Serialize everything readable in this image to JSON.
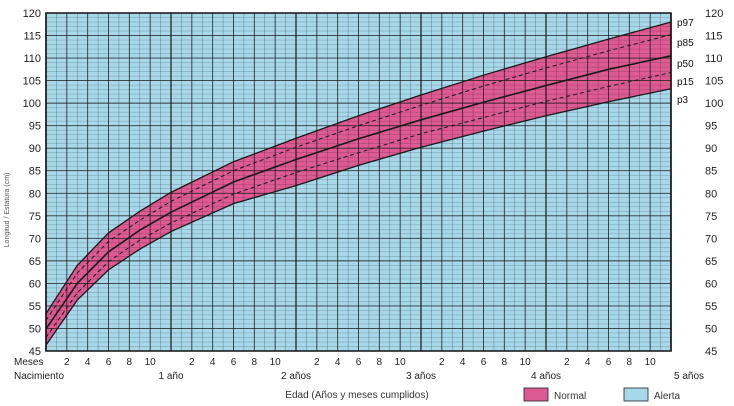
{
  "chart_data": {
    "type": "line",
    "xlabel": "Edad (Años y meses cumplidos)",
    "ylabel": "Longitud / Estatura (cm)",
    "x_unit": "months",
    "xlim": [
      0,
      60
    ],
    "ylim": [
      45,
      120
    ],
    "y_ticks": [
      45,
      50,
      55,
      60,
      65,
      70,
      75,
      80,
      85,
      90,
      95,
      100,
      105,
      110,
      115,
      120
    ],
    "month_axis_title": "Meses",
    "month_ticks": [
      "2",
      "4",
      "6",
      "8",
      "10",
      "2",
      "4",
      "6",
      "8",
      "10",
      "2",
      "4",
      "6",
      "8",
      "10",
      "2",
      "4",
      "6",
      "8",
      "10",
      "2",
      "4",
      "6",
      "8",
      "10"
    ],
    "year_labels": [
      "Nacimiento",
      "1 año",
      "2 años",
      "3 años",
      "4 años",
      "5 años"
    ],
    "grid": true,
    "x": [
      0,
      3,
      6,
      9,
      12,
      18,
      24,
      30,
      36,
      42,
      48,
      54,
      60
    ],
    "series": [
      {
        "name": "p97",
        "values": [
          53.3,
          64.0,
          71.2,
          76.0,
          80.2,
          87.0,
          92.2,
          97.2,
          101.8,
          106.2,
          110.3,
          114.2,
          118.0
        ]
      },
      {
        "name": "p85",
        "values": [
          51.8,
          62.3,
          69.3,
          74.0,
          78.2,
          85.0,
          90.2,
          95.0,
          99.5,
          103.8,
          107.8,
          111.6,
          115.2
        ]
      },
      {
        "name": "p50",
        "values": [
          49.9,
          60.0,
          67.0,
          71.8,
          75.8,
          82.5,
          87.5,
          92.1,
          96.3,
          100.2,
          103.9,
          107.5,
          110.5
        ]
      },
      {
        "name": "p15",
        "values": [
          48.0,
          57.9,
          64.8,
          69.6,
          73.4,
          79.8,
          84.6,
          89.0,
          93.2,
          96.8,
          100.4,
          103.7,
          106.8
        ]
      },
      {
        "name": "p3",
        "values": [
          46.3,
          56.3,
          63.0,
          67.6,
          71.5,
          77.7,
          81.7,
          86.2,
          90.2,
          93.8,
          97.2,
          100.3,
          103.2
        ]
      }
    ],
    "legend": [
      {
        "label": "Normal",
        "color": "#de5a93"
      },
      {
        "label": "Alerta",
        "color": "#a7d8ea"
      }
    ],
    "colors": {
      "normal": "#de5a93",
      "alerta": "#a7d8ea",
      "grid": "#1a1a1a"
    }
  }
}
